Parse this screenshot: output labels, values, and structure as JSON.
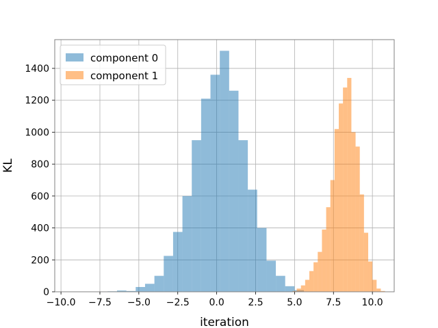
{
  "chart_data": {
    "type": "histogram",
    "title": "",
    "xlabel": "iteration",
    "ylabel": "KL",
    "xlim": [
      -10.4,
      11.4
    ],
    "ylim": [
      0,
      1580
    ],
    "xticks": [
      -10.0,
      -7.5,
      -5.0,
      -2.5,
      0.0,
      2.5,
      5.0,
      7.5,
      10.0
    ],
    "xtick_labels": [
      "−10.0",
      "−7.5",
      "−5.0",
      "−2.5",
      "0.0",
      "2.5",
      "5.0",
      "7.5",
      "10.0"
    ],
    "yticks": [
      0,
      200,
      400,
      600,
      800,
      1000,
      1200,
      1400
    ],
    "ytick_labels": [
      "0",
      "200",
      "400",
      "600",
      "800",
      "1000",
      "1200",
      "1400"
    ],
    "grid": true,
    "legend": "top-left",
    "series": [
      {
        "name": "component 0",
        "color": "#1f77b4",
        "alpha": 0.5,
        "bins": [
          [
            -10.0,
            -9.4,
            1
          ],
          [
            -9.4,
            -8.8,
            0
          ],
          [
            -8.8,
            -8.2,
            0
          ],
          [
            -8.2,
            -7.6,
            1
          ],
          [
            -7.6,
            -7.0,
            2
          ],
          [
            -7.0,
            -6.4,
            3
          ],
          [
            -6.4,
            -5.8,
            8
          ],
          [
            -5.8,
            -5.2,
            5
          ],
          [
            -5.2,
            -4.6,
            30
          ],
          [
            -4.6,
            -4.0,
            50
          ],
          [
            -4.0,
            -3.4,
            100
          ],
          [
            -3.4,
            -2.8,
            225
          ],
          [
            -2.8,
            -2.2,
            375
          ],
          [
            -2.2,
            -1.6,
            600
          ],
          [
            -1.6,
            -1.0,
            950
          ],
          [
            -1.0,
            -0.4,
            1210
          ],
          [
            -0.4,
            0.2,
            1360
          ],
          [
            0.2,
            0.8,
            1510
          ],
          [
            0.8,
            1.4,
            1260
          ],
          [
            1.4,
            2.0,
            950
          ],
          [
            2.0,
            2.6,
            640
          ],
          [
            2.6,
            3.2,
            400
          ],
          [
            3.2,
            3.8,
            195
          ],
          [
            3.8,
            4.4,
            100
          ],
          [
            4.4,
            5.0,
            35
          ],
          [
            5.0,
            5.6,
            10
          ]
        ]
      },
      {
        "name": "component 1",
        "color": "#ff7f0e",
        "alpha": 0.5,
        "bins": [
          [
            4.6,
            4.87,
            2
          ],
          [
            4.87,
            5.14,
            5
          ],
          [
            5.14,
            5.41,
            20
          ],
          [
            5.41,
            5.68,
            40
          ],
          [
            5.68,
            5.95,
            75
          ],
          [
            5.95,
            6.22,
            130
          ],
          [
            6.22,
            6.49,
            185
          ],
          [
            6.49,
            6.76,
            250
          ],
          [
            6.76,
            7.03,
            390
          ],
          [
            7.03,
            7.3,
            530
          ],
          [
            7.3,
            7.57,
            700
          ],
          [
            7.57,
            7.84,
            1020
          ],
          [
            7.84,
            8.11,
            1180
          ],
          [
            8.11,
            8.38,
            1280
          ],
          [
            8.38,
            8.65,
            1340
          ],
          [
            8.65,
            8.92,
            1000
          ],
          [
            8.92,
            9.19,
            910
          ],
          [
            9.19,
            9.46,
            610
          ],
          [
            9.46,
            9.73,
            370
          ],
          [
            9.73,
            10.0,
            190
          ],
          [
            10.0,
            10.27,
            75
          ],
          [
            10.27,
            10.54,
            20
          ],
          [
            10.54,
            10.81,
            5
          ]
        ]
      }
    ]
  }
}
